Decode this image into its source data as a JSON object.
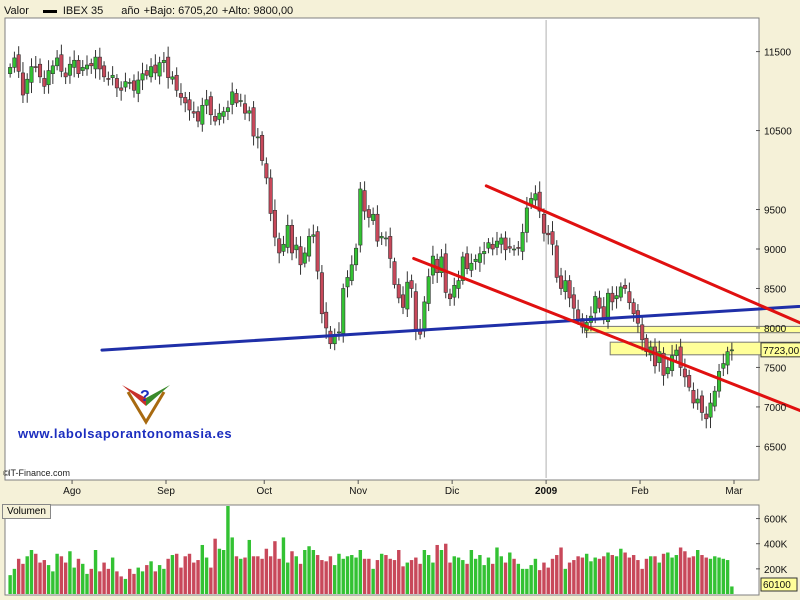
{
  "legend": {
    "field": "Valor",
    "symbol": "IBEX 35",
    "period": "año",
    "low_label": "+Bajo: 6705,20",
    "high_label": "+Alto: 9800,00"
  },
  "credit": "IT-Finance.com",
  "watermark": "www.labolsaporantonomasia.es",
  "volume_title": "Volumen",
  "colors": {
    "up": "#33c233",
    "down": "#c8485a",
    "support": "#1f2fa8",
    "channel": "#e01010",
    "zone": "#ffff99"
  },
  "chart_data": {
    "type": "candlestick",
    "price_axis": {
      "min": 6100,
      "max": 11900,
      "ticks": [
        6500,
        7000,
        7500,
        8000,
        8500,
        9000,
        9500,
        10500,
        11500
      ]
    },
    "months": [
      "Ago",
      "Sep",
      "Oct",
      "Nov",
      "Dic",
      "2009",
      "Feb",
      "Mar"
    ],
    "month_index": [
      15,
      37,
      60,
      82,
      104,
      126,
      148,
      170
    ],
    "last_price_label": "7723,00",
    "last_price": 7723,
    "closes": [
      11300,
      11420,
      11250,
      10950,
      11150,
      11310,
      11300,
      11180,
      11060,
      11260,
      11320,
      11420,
      11250,
      11180,
      11340,
      11390,
      11220,
      11300,
      11330,
      11320,
      11430,
      11280,
      11180,
      11150,
      11200,
      11040,
      11010,
      11120,
      11110,
      11010,
      11140,
      11220,
      11200,
      11310,
      11230,
      11360,
      11390,
      11170,
      11180,
      11010,
      10920,
      10850,
      10760,
      10720,
      10620,
      10820,
      10890,
      10700,
      10620,
      10720,
      10740,
      10790,
      10990,
      10850,
      10880,
      10720,
      10750,
      10430,
      10420,
      10120,
      9900,
      9450,
      9150,
      8950,
      9060,
      9300,
      8950,
      9050,
      8800,
      8950,
      9160,
      9180,
      8720,
      8180,
      8000,
      7800,
      7900,
      7950,
      8500,
      8640,
      8800,
      9010,
      9760,
      9480,
      9400,
      9440,
      9100,
      9160,
      9140,
      8880,
      8550,
      8380,
      8260,
      8580,
      8500,
      7980,
      7920,
      8330,
      8650,
      8910,
      8700,
      8900,
      8450,
      8370,
      8540,
      8600,
      8900,
      8750,
      8820,
      8870,
      8940,
      8970,
      9080,
      9000,
      9100,
      9140,
      8990,
      9010,
      9000,
      9010,
      9210,
      9520,
      9640,
      9700,
      9480,
      9200,
      9180,
      9060,
      8640,
      8500,
      8600,
      8380,
      8250,
      8100,
      8010,
      8070,
      8150,
      8400,
      8250,
      8120,
      8440,
      8330,
      8410,
      8520,
      8500,
      8320,
      8180,
      8060,
      7850,
      7700,
      7760,
      7520,
      7700,
      7400,
      7500,
      7650,
      7720,
      7500,
      7380,
      7250,
      7050,
      7100,
      6930,
      6850,
      7050,
      7200,
      7450,
      7550,
      7700,
      7723
    ],
    "volume_axis": {
      "min": 0,
      "max": 700000,
      "ticks": [
        200000,
        400000,
        600000
      ],
      "tick_labels": [
        "200K",
        "400K",
        "600K"
      ]
    },
    "last_volume_label": "60100",
    "volume": [
      150,
      200,
      280,
      240,
      300,
      350,
      320,
      250,
      270,
      230,
      180,
      320,
      300,
      250,
      340,
      210,
      280,
      240,
      160,
      200,
      350,
      180,
      250,
      200,
      290,
      180,
      140,
      120,
      200,
      160,
      210,
      180,
      230,
      260,
      180,
      230,
      200,
      280,
      310,
      320,
      210,
      300,
      320,
      250,
      270,
      390,
      290,
      210,
      440,
      360,
      350,
      700,
      450,
      300,
      280,
      290,
      430,
      300,
      300,
      280,
      360,
      300,
      420,
      280,
      450,
      250,
      340,
      300,
      240,
      350,
      380,
      350,
      310,
      270,
      260,
      300,
      230,
      320,
      280,
      300,
      310,
      290,
      350,
      280,
      280,
      200,
      270,
      320,
      310,
      280,
      270,
      350,
      220,
      250,
      270,
      290,
      240,
      350,
      310,
      250,
      390,
      350,
      400,
      250,
      300,
      290,
      270,
      240,
      350,
      280,
      310,
      230,
      290,
      240,
      370,
      300,
      250,
      330,
      280,
      240,
      200,
      200,
      230,
      280,
      190,
      250,
      210,
      280,
      310,
      370,
      200,
      250,
      270,
      300,
      290,
      320,
      260,
      290,
      280,
      300,
      330,
      310,
      300,
      360,
      330,
      290,
      310,
      270,
      200,
      280,
      300,
      300,
      250,
      320,
      330,
      290,
      310,
      370,
      340,
      290,
      300,
      350,
      310,
      290,
      280,
      300,
      290,
      280,
      270,
      60
    ],
    "support_line": {
      "from": [
        22,
        7720
      ],
      "to": [
        220,
        8390
      ]
    },
    "channel_upper": {
      "from": [
        112,
        9800
      ],
      "to": [
        220,
        7250
      ]
    },
    "channel_lower": {
      "from": [
        95,
        8880
      ],
      "to": [
        220,
        6220
      ]
    },
    "zones": [
      {
        "from": 135,
        "to": 214,
        "low": 7940,
        "high": 8020
      },
      {
        "from": 141,
        "to": 214,
        "low": 7660,
        "high": 7820
      }
    ]
  }
}
